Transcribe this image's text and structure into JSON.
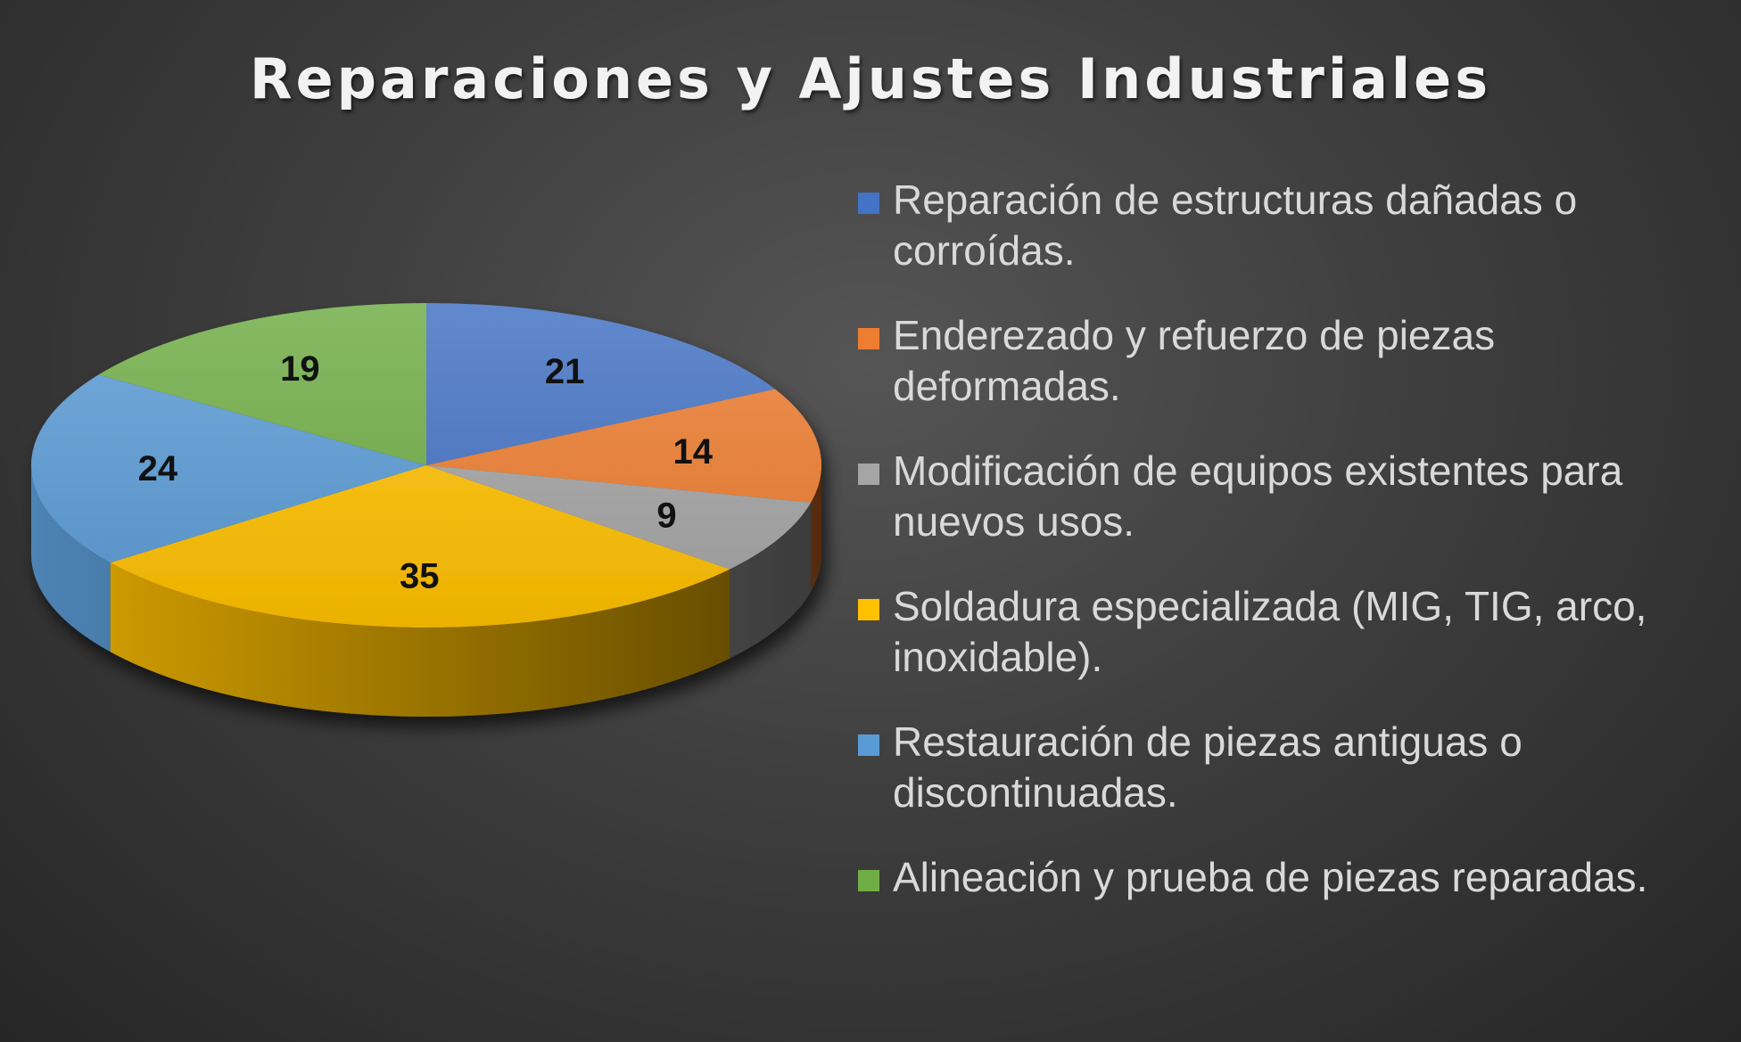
{
  "chart_data": {
    "type": "pie",
    "title": "Reparaciones y Ajustes Industriales",
    "three_d": true,
    "legend_position": "right",
    "categories": [
      "Reparación de estructuras dañadas o corroídas.",
      "Enderezado y refuerzo de piezas deformadas.",
      "Modificación de equipos existentes para nuevos usos.",
      "Soldadura especializada (MIG, TIG, arco, inoxidable).",
      "Restauración de piezas antiguas o discontinuadas.",
      "Alineación y prueba de piezas reparadas."
    ],
    "values": [
      21,
      14,
      9,
      35,
      24,
      19
    ],
    "colors": [
      "#4472c4",
      "#ed7d31",
      "#a5a5a5",
      "#ffc000",
      "#5b9bd5",
      "#70ad47"
    ]
  }
}
